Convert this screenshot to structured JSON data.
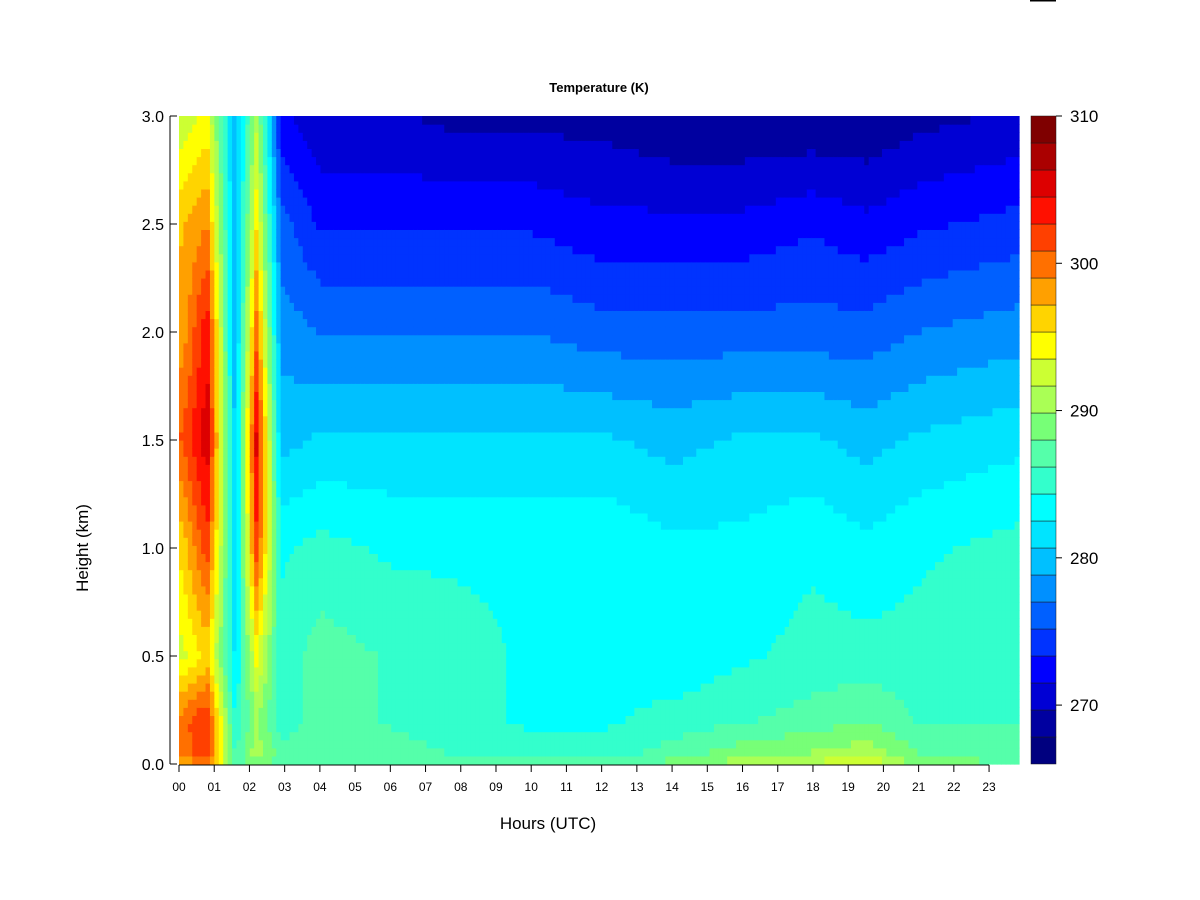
{
  "chart_data": {
    "type": "heatmap",
    "title": "Temperature (K)",
    "xlabel": "Hours (UTC)",
    "ylabel": "Height (km)",
    "x_ticks": [
      "00",
      "01",
      "02",
      "03",
      "04",
      "05",
      "06",
      "07",
      "08",
      "09",
      "10",
      "11",
      "12",
      "13",
      "14",
      "15",
      "16",
      "17",
      "18",
      "19",
      "20",
      "21",
      "22",
      "23"
    ],
    "xlim": [
      0,
      23.85
    ],
    "y_ticks": [
      "0.0",
      "0.5",
      "1.0",
      "1.5",
      "2.0",
      "2.5",
      "3.0"
    ],
    "ylim": [
      0,
      3.0
    ],
    "colorbar": {
      "ticks": [
        "270",
        "280",
        "290",
        "300",
        "310"
      ],
      "range": [
        266,
        310
      ],
      "levels": 22,
      "colors": [
        "#00007F",
        "#0000A0",
        "#0000D4",
        "#0000FF",
        "#0033FF",
        "#0060FF",
        "#0090FF",
        "#00C0FF",
        "#00E4FF",
        "#00FFFF",
        "#33FFCC",
        "#55FFAA",
        "#77FF77",
        "#AAFF55",
        "#CCFF33",
        "#FFFF00",
        "#FFD400",
        "#FFA000",
        "#FF7000",
        "#FF4000",
        "#FF1000",
        "#DD0000",
        "#AA0000",
        "#7F0000"
      ]
    },
    "profile_heights_km": [
      0.0,
      0.05,
      0.2,
      0.5,
      1.0,
      1.5,
      2.0,
      2.5,
      3.0
    ],
    "profiles_K": [
      {
        "hour": 0.1,
        "values": [
          297,
          300,
          300,
          293,
          296,
          301,
          298,
          297,
          292
        ]
      },
      {
        "hour": 0.8,
        "values": [
          300,
          302,
          303,
          296,
          302,
          306,
          304,
          299,
          294
        ]
      },
      {
        "hour": 1.6,
        "values": [
          286,
          286,
          284,
          282,
          281,
          280,
          279,
          279,
          279
        ]
      },
      {
        "hour": 2.2,
        "values": [
          289,
          291,
          290,
          294,
          302,
          305,
          300,
          295,
          291
        ]
      },
      {
        "hour": 2.9,
        "values": [
          287,
          287,
          285,
          285,
          284,
          280,
          278,
          276,
          272
        ]
      },
      {
        "hour": 4.0,
        "values": [
          288,
          288,
          287,
          287,
          285,
          281,
          277,
          273,
          270
        ]
      },
      {
        "hour": 6.0,
        "values": [
          287,
          287,
          286,
          286,
          284,
          281,
          277,
          273,
          270
        ]
      },
      {
        "hour": 8.0,
        "values": [
          287,
          286,
          285,
          285,
          284,
          281,
          277,
          273,
          269
        ]
      },
      {
        "hour": 10.0,
        "values": [
          287,
          285,
          284,
          284,
          284,
          281,
          277,
          273,
          269
        ]
      },
      {
        "hour": 12.0,
        "values": [
          287,
          285,
          284,
          284,
          284,
          281,
          276,
          272,
          269
        ]
      },
      {
        "hour": 14.0,
        "values": [
          289,
          287,
          285,
          283,
          283,
          280,
          276,
          272,
          268
        ]
      },
      {
        "hour": 16.0,
        "values": [
          291,
          289,
          286,
          284,
          283,
          281,
          276,
          272,
          268
        ]
      },
      {
        "hour": 18.0,
        "values": [
          292,
          290,
          287,
          285,
          284,
          281,
          276,
          273,
          268
        ]
      },
      {
        "hour": 19.5,
        "values": [
          294,
          291,
          288,
          285,
          283,
          280,
          276,
          272,
          268
        ]
      },
      {
        "hour": 21.0,
        "values": [
          289,
          288,
          286,
          285,
          284,
          281,
          277,
          273,
          269
        ]
      },
      {
        "hour": 23.85,
        "values": [
          288,
          287,
          286,
          286,
          285,
          282,
          278,
          274,
          270
        ]
      }
    ]
  }
}
